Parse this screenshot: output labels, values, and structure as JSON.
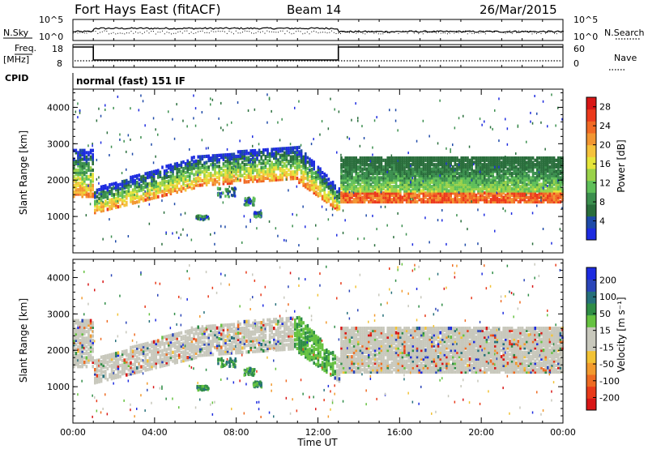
{
  "header": {
    "title": "Fort Hays East (fitACF)",
    "beam": "Beam 14",
    "date": "26/Mar/2015"
  },
  "nsky_panel": {
    "left_label": "N.Sky",
    "right_label": "N.Search",
    "left_ticks": [
      "10^5",
      "10^0"
    ],
    "right_ticks": [
      "10^5",
      "10^0"
    ]
  },
  "freq_panel": {
    "left_label_line1": "Freq.",
    "left_label_line2": "[MHz]",
    "right_label": "Nave",
    "left_ticks": [
      "18",
      "8"
    ],
    "right_ticks": [
      "60",
      "0"
    ]
  },
  "cpid": {
    "label": "CPID",
    "text": "normal (fast) 151 IF"
  },
  "colors": {
    "power": [
      "#1d2be0",
      "#1e4aa8",
      "#2a6e3c",
      "#3b8f4e",
      "#5fbf59",
      "#9ad24a",
      "#e5e53a",
      "#f5c23b",
      "#f29632",
      "#f16a24",
      "#ec3a1c",
      "#d81616"
    ],
    "velocity": [
      "#1d2be0",
      "#2a45b8",
      "#26707a",
      "#2f8d46",
      "#66c241",
      "#c8c8bc",
      "#c8c8bc",
      "#f2c234",
      "#f29a2e",
      "#ee6b22",
      "#e83a1a",
      "#d81616"
    ],
    "ground_scatter": "#c8c8bc",
    "black": "#000000"
  },
  "chart_data": [
    {
      "type": "heatmap",
      "name": "power",
      "ylabel": "Slant Range [km]",
      "yticks": [
        1000,
        2000,
        3000,
        4000
      ],
      "ylim": [
        0,
        4500
      ],
      "xlim_hours": [
        0,
        24
      ],
      "colorbar": {
        "label": "Power [dB]",
        "ticks": [
          4,
          8,
          12,
          16,
          20,
          24,
          28
        ],
        "range": [
          0,
          30
        ]
      }
    },
    {
      "type": "heatmap",
      "name": "velocity",
      "ylabel": "Slant Range [km]",
      "yticks": [
        1000,
        2000,
        3000,
        4000
      ],
      "ylim": [
        0,
        4500
      ],
      "xlim_hours": [
        0,
        24
      ],
      "colorbar": {
        "label": "Velocity [m s⁻¹]",
        "ticks": [
          200,
          100,
          50,
          15,
          -15,
          -50,
          -100,
          -200
        ]
      }
    }
  ],
  "xaxis": {
    "label": "Time UT",
    "ticks": [
      "00:00",
      "04:00",
      "08:00",
      "12:00",
      "16:00",
      "20:00",
      "00:00"
    ]
  }
}
